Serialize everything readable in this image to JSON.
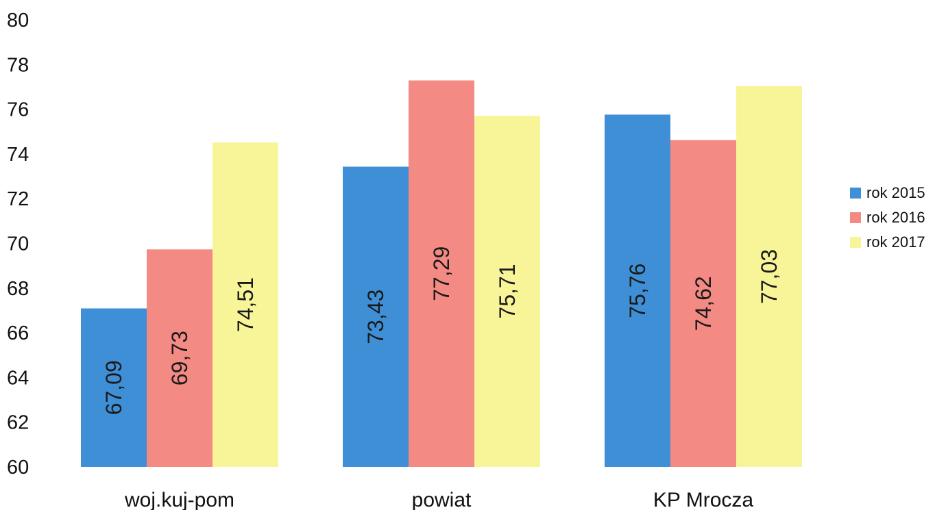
{
  "chart_data": {
    "type": "bar",
    "title": "",
    "xlabel": "",
    "ylabel": "",
    "categories": [
      "woj.kuj-pom",
      "powiat",
      "KP Mrocza"
    ],
    "series": [
      {
        "name": "rok 2015",
        "color": "#3f8fd6",
        "values": [
          67.09,
          73.43,
          75.76
        ],
        "labels": [
          "67,09",
          "73,43",
          "75,76"
        ]
      },
      {
        "name": "rok 2016",
        "color": "#f48a84",
        "values": [
          69.73,
          77.29,
          74.62
        ],
        "labels": [
          "69,73",
          "77,29",
          "74,62"
        ]
      },
      {
        "name": "rok 2017",
        "color": "#f8f598",
        "values": [
          74.51,
          75.71,
          77.03
        ],
        "labels": [
          "74,51",
          "75,71",
          "77,03"
        ]
      }
    ],
    "ylim": [
      60,
      80
    ],
    "yticks": [
      "60",
      "62",
      "64",
      "66",
      "68",
      "70",
      "72",
      "74",
      "76",
      "78",
      "80"
    ],
    "grid": false,
    "legend_position": "right"
  }
}
